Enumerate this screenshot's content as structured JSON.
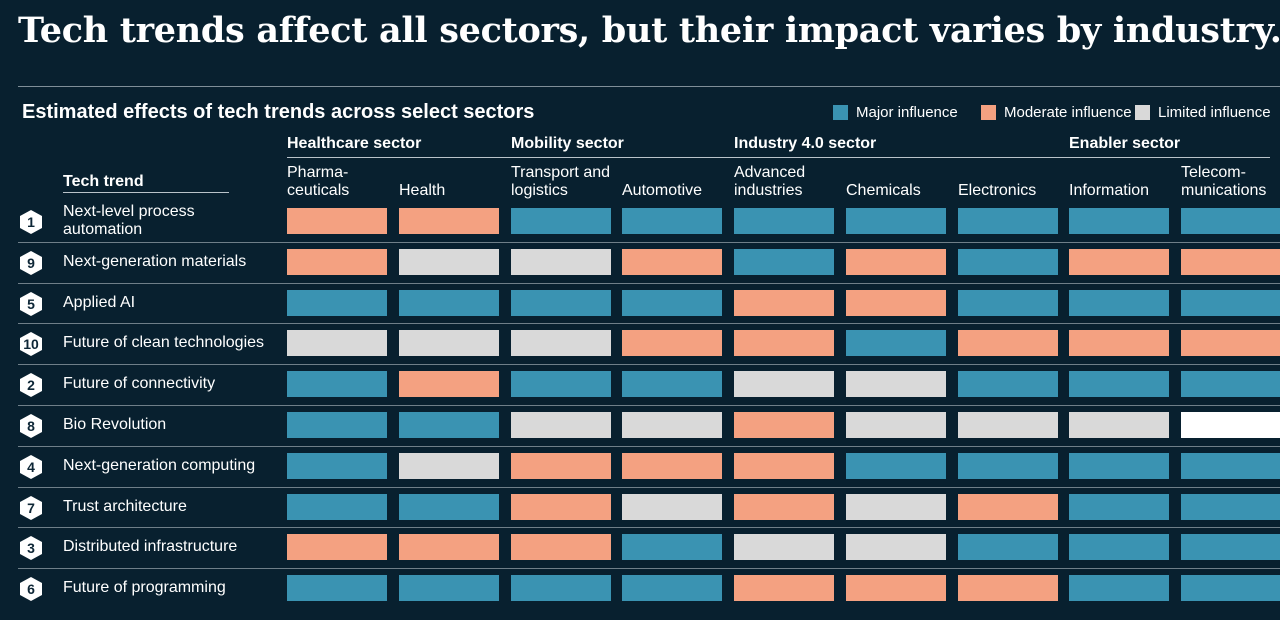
{
  "headline": "Tech trends affect all sectors, but their impact varies by industry.",
  "subtitle": "Estimated effects of tech trends across select sectors",
  "colors": {
    "major": "#3a93b2",
    "moderate": "#f4a181",
    "limited": "#d9d9d9",
    "white": "#ffffff"
  },
  "legend": {
    "major": "Major influence",
    "moderate": "Moderate influence",
    "limited": "Limited influence"
  },
  "trend_header": "Tech trend",
  "sectors": [
    {
      "name": "Healthcare sector",
      "industries": [
        "Pharma-\nceuticals",
        "Health"
      ]
    },
    {
      "name": "Mobility sector",
      "industries": [
        "Transport and\nlogistics",
        "Automotive"
      ]
    },
    {
      "name": "Industry 4.0 sector",
      "industries": [
        "Advanced\nindustries",
        "Chemicals",
        "Electronics"
      ]
    },
    {
      "name": "Enabler sector",
      "industries": [
        "Information",
        "Telecom-\nmunications"
      ]
    }
  ],
  "chart_data": {
    "type": "heatmap",
    "title": "Estimated effects of tech trends across select sectors",
    "columns": [
      "Pharma-ceuticals",
      "Health",
      "Transport and logistics",
      "Automotive",
      "Advanced industries",
      "Chemicals",
      "Electronics",
      "Information",
      "Telecom-munications"
    ],
    "legend": [
      "Major influence",
      "Moderate influence",
      "Limited influence"
    ],
    "rows": [
      {
        "number": "1",
        "trend": "Next-level process\nautomation",
        "values": [
          "moderate",
          "moderate",
          "major",
          "major",
          "major",
          "major",
          "major",
          "major",
          "major"
        ]
      },
      {
        "number": "9",
        "trend": "Next-generation materials",
        "values": [
          "moderate",
          "limited",
          "limited",
          "moderate",
          "major",
          "moderate",
          "major",
          "moderate",
          "moderate"
        ]
      },
      {
        "number": "5",
        "trend": "Applied AI",
        "values": [
          "major",
          "major",
          "major",
          "major",
          "moderate",
          "moderate",
          "major",
          "major",
          "major"
        ]
      },
      {
        "number": "10",
        "trend": "Future of clean technologies",
        "values": [
          "limited",
          "limited",
          "limited",
          "moderate",
          "moderate",
          "major",
          "moderate",
          "moderate",
          "moderate"
        ]
      },
      {
        "number": "2",
        "trend": "Future of connectivity",
        "values": [
          "major",
          "moderate",
          "major",
          "major",
          "limited",
          "limited",
          "major",
          "major",
          "major"
        ]
      },
      {
        "number": "8",
        "trend": "Bio Revolution",
        "values": [
          "major",
          "major",
          "limited",
          "limited",
          "moderate",
          "limited",
          "limited",
          "limited",
          "white"
        ]
      },
      {
        "number": "4",
        "trend": "Next-generation computing",
        "values": [
          "major",
          "limited",
          "moderate",
          "moderate",
          "moderate",
          "major",
          "major",
          "major",
          "major"
        ]
      },
      {
        "number": "7",
        "trend": "Trust architecture",
        "values": [
          "major",
          "major",
          "moderate",
          "limited",
          "moderate",
          "limited",
          "moderate",
          "major",
          "major"
        ]
      },
      {
        "number": "3",
        "trend": "Distributed infrastructure",
        "values": [
          "moderate",
          "moderate",
          "moderate",
          "major",
          "limited",
          "limited",
          "major",
          "major",
          "major"
        ]
      },
      {
        "number": "6",
        "trend": "Future of programming",
        "values": [
          "major",
          "major",
          "major",
          "major",
          "moderate",
          "moderate",
          "moderate",
          "major",
          "major"
        ]
      }
    ]
  }
}
